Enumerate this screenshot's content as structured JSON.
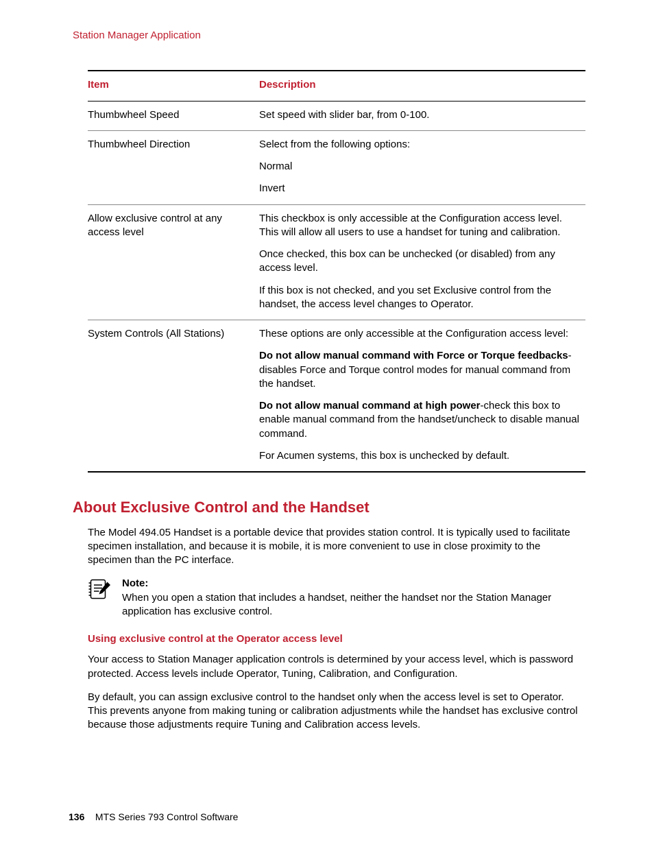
{
  "colors": {
    "accent": "#c02030",
    "text": "#000000",
    "rule": "#888888",
    "rule_heavy": "#000000",
    "background": "#ffffff"
  },
  "typography": {
    "body_size_pt": 11,
    "h2_size_pt": 16,
    "h3_size_pt": 11,
    "font_family": "Arial"
  },
  "header": {
    "running": "Station Manager Application"
  },
  "table": {
    "col_item": "Item",
    "col_desc": "Description",
    "rows": [
      {
        "item": "Thumbwheel Speed",
        "paras": [
          {
            "runs": [
              {
                "t": "Set speed with slider bar, from 0-100."
              }
            ]
          }
        ]
      },
      {
        "item": "Thumbwheel Direction",
        "paras": [
          {
            "runs": [
              {
                "t": "Select from the following options:"
              }
            ]
          },
          {
            "runs": [
              {
                "t": "Normal"
              }
            ]
          },
          {
            "runs": [
              {
                "t": "Invert"
              }
            ]
          }
        ]
      },
      {
        "item": "Allow exclusive control at any access level",
        "paras": [
          {
            "runs": [
              {
                "t": "This checkbox is only accessible at the Configuration access level. This will allow all users to use a handset for tuning and calibration."
              }
            ]
          },
          {
            "runs": [
              {
                "t": "Once checked, this box can be unchecked (or disabled) from any access level."
              }
            ]
          },
          {
            "runs": [
              {
                "t": "If this box is not checked, and you set Exclusive control from the handset, the access level changes to Operator."
              }
            ]
          }
        ]
      },
      {
        "item": "System Controls (All Stations)",
        "paras": [
          {
            "runs": [
              {
                "t": "These options are only accessible at the Configuration access level:"
              }
            ]
          },
          {
            "runs": [
              {
                "t": "Do not allow manual command with Force or Torque feedbacks",
                "b": true
              },
              {
                "t": "-disables Force and Torque control modes for manual command from the handset."
              }
            ]
          },
          {
            "runs": [
              {
                "t": "Do not allow manual command at high power",
                "b": true
              },
              {
                "t": "-check this box to enable manual command from the handset/uncheck to disable manual command."
              }
            ]
          },
          {
            "runs": [
              {
                "t": "For Acumen systems, this box is unchecked by default."
              }
            ]
          }
        ]
      }
    ]
  },
  "section": {
    "title": "About Exclusive Control and the Handset",
    "intro": "The Model 494.05 Handset is a portable device that provides station control. It is typically used to facilitate specimen installation, and because it is mobile, it is more convenient to use in close proximity to the specimen than the PC interface.",
    "note_label": "Note:",
    "note_body": "When you open a station that includes a handset, neither the handset nor the Station Manager application has exclusive control.",
    "sub_title": "Using exclusive control at the Operator access level",
    "sub_p1": "Your access to Station Manager application controls is determined by your access level, which is password protected. Access levels include Operator, Tuning, Calibration, and Configuration.",
    "sub_p2": "By default, you can assign exclusive control to the handset only when the access level is set to Operator. This prevents anyone from making tuning or calibration adjustments while the handset has exclusive control because those adjustments require Tuning and Calibration access levels."
  },
  "footer": {
    "page": "136",
    "title": "MTS Series 793 Control Software"
  }
}
